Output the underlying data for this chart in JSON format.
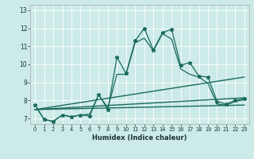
{
  "xlabel": "Humidex (Indice chaleur)",
  "bg_color": "#cceae7",
  "grid_color": "#ffffff",
  "line_color": "#1a6b5a",
  "xlim": [
    -0.5,
    23.5
  ],
  "ylim": [
    6.7,
    13.3
  ],
  "yticks": [
    7,
    8,
    9,
    10,
    11,
    12,
    13
  ],
  "xticks": [
    0,
    1,
    2,
    3,
    4,
    5,
    6,
    7,
    8,
    9,
    10,
    11,
    12,
    13,
    14,
    15,
    16,
    17,
    18,
    19,
    20,
    21,
    22,
    23
  ],
  "series": [
    {
      "x": [
        0,
        1,
        2,
        3,
        4,
        5,
        6,
        7,
        8,
        9,
        10,
        11,
        12,
        13,
        14,
        15,
        16,
        17,
        18,
        19,
        20,
        21,
        22,
        23
      ],
      "y": [
        7.75,
        6.95,
        6.85,
        7.2,
        7.1,
        7.2,
        7.15,
        8.35,
        7.5,
        10.4,
        9.5,
        11.3,
        12.0,
        10.8,
        11.75,
        11.95,
        9.95,
        10.1,
        9.35,
        9.3,
        7.95,
        7.8,
        8.0,
        8.1
      ],
      "marker": "*",
      "markersize": 3.5,
      "linewidth": 0.9
    },
    {
      "x": [
        0,
        1,
        2,
        3,
        4,
        5,
        6,
        7,
        8,
        9,
        10,
        11,
        12,
        13,
        14,
        15,
        16,
        17,
        18,
        19,
        20,
        21,
        22,
        23
      ],
      "y": [
        7.75,
        6.95,
        6.85,
        7.2,
        7.1,
        7.2,
        7.25,
        8.3,
        7.6,
        9.45,
        9.45,
        11.2,
        11.45,
        10.75,
        11.7,
        11.4,
        9.75,
        9.45,
        9.3,
        8.95,
        7.8,
        7.75,
        7.95,
        8.05
      ],
      "marker": null,
      "markersize": 0,
      "linewidth": 0.9
    },
    {
      "x": [
        0,
        23
      ],
      "y": [
        7.5,
        9.3
      ],
      "marker": null,
      "markersize": 0,
      "linewidth": 1.0
    },
    {
      "x": [
        0,
        23
      ],
      "y": [
        7.5,
        8.15
      ],
      "marker": null,
      "markersize": 0,
      "linewidth": 1.0
    },
    {
      "x": [
        0,
        23
      ],
      "y": [
        7.5,
        7.75
      ],
      "marker": null,
      "markersize": 0,
      "linewidth": 1.0
    }
  ]
}
